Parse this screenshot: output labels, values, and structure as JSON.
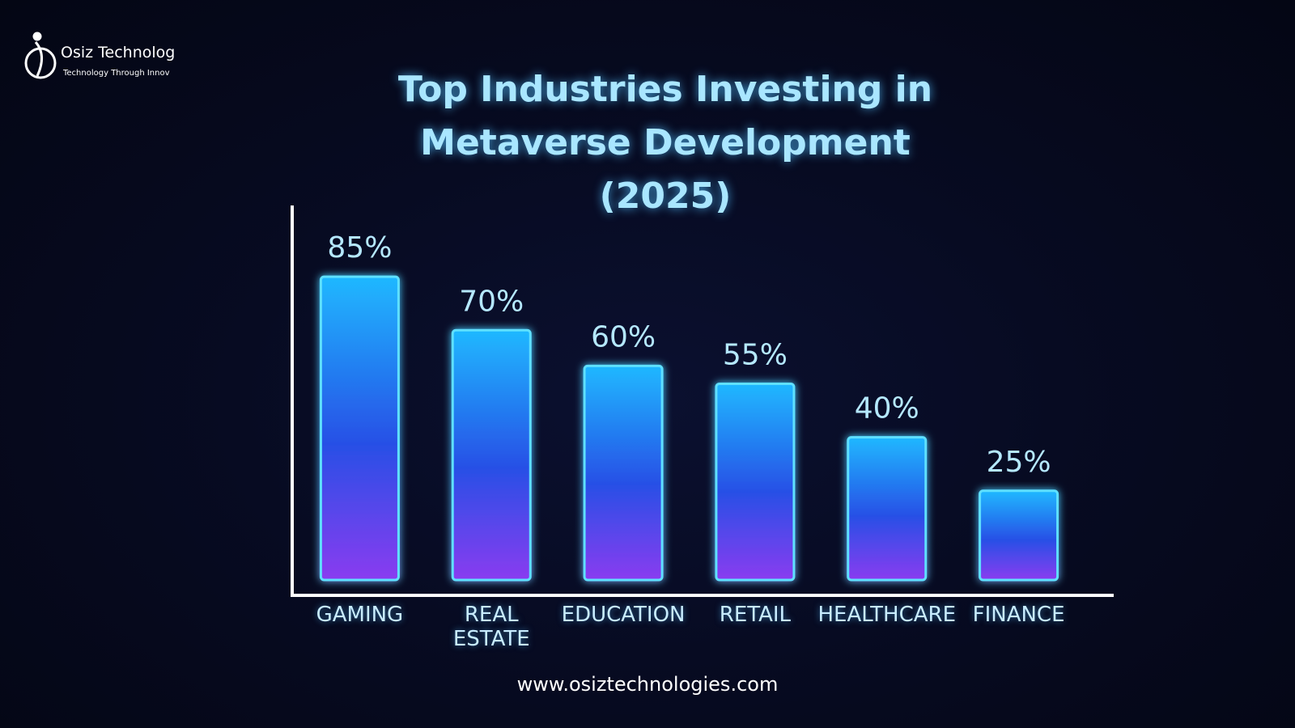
{
  "logo": {
    "name": "Osiz Technolog",
    "tagline": "Technology Through Innov"
  },
  "chart_data": {
    "type": "bar",
    "title": "Top Industries Investing in Metaverse Development (2025)",
    "categories": [
      "GAMING",
      "REAL ESTATE",
      "EDUCATION",
      "RETAIL",
      "HEALTHCARE",
      "FINANCE"
    ],
    "values": [
      85,
      70,
      60,
      55,
      40,
      25
    ],
    "value_labels": [
      "85%",
      "70%",
      "60%",
      "55%",
      "40%",
      "25%"
    ],
    "ylim": [
      0,
      100
    ]
  },
  "footer": {
    "url": "www.osiztechnologies.com"
  }
}
